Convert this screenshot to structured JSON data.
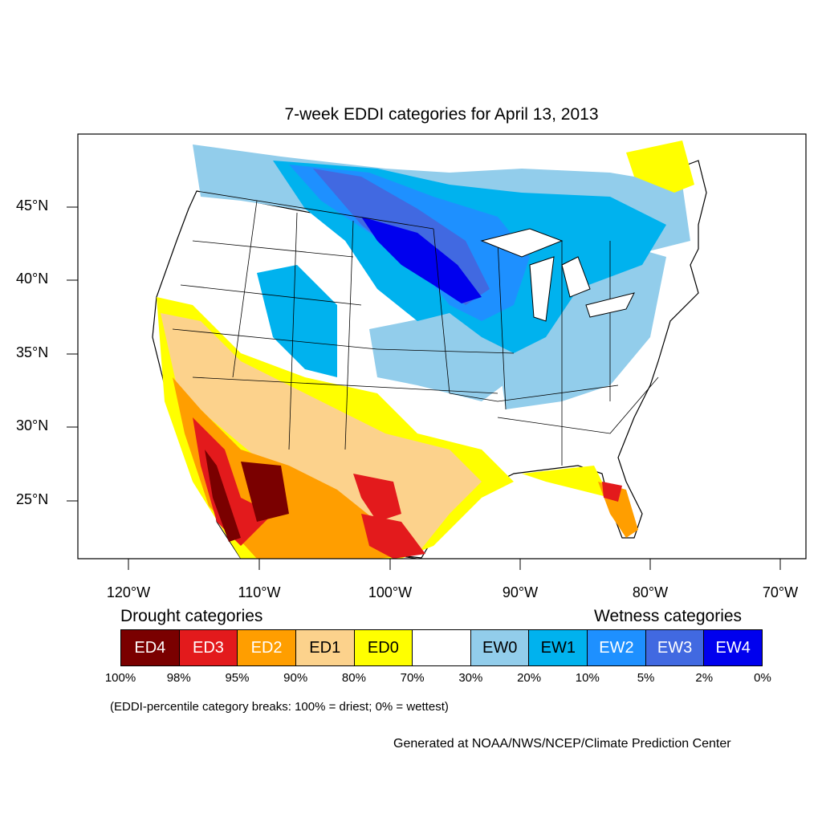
{
  "title": "7-week EDDI categories for April 13, 2013",
  "lat_labels": [
    "45°N",
    "40°N",
    "35°N",
    "30°N",
    "25°N"
  ],
  "lon_labels": [
    "120°W",
    "110°W",
    "100°W",
    "90°W",
    "80°W",
    "70°W"
  ],
  "legend": {
    "drought_heading": "Drought categories",
    "wetness_heading": "Wetness categories",
    "categories": [
      {
        "label": "ED4",
        "color": "#7a0000",
        "text_color": "#ffffff"
      },
      {
        "label": "ED3",
        "color": "#e31a1c",
        "text_color": "#ffffff"
      },
      {
        "label": "ED2",
        "color": "#ff9e00",
        "text_color": "#ffffff"
      },
      {
        "label": "ED1",
        "color": "#fcd28c",
        "text_color": "#000000"
      },
      {
        "label": "ED0",
        "color": "#ffff00",
        "text_color": "#000000"
      },
      {
        "label": "",
        "color": "#ffffff",
        "text_color": "#000000"
      },
      {
        "label": "EW0",
        "color": "#92cdeb",
        "text_color": "#000000"
      },
      {
        "label": "EW1",
        "color": "#00b2ee",
        "text_color": "#000000"
      },
      {
        "label": "EW2",
        "color": "#1e90ff",
        "text_color": "#ffffff"
      },
      {
        "label": "EW3",
        "color": "#4169e1",
        "text_color": "#ffffff"
      },
      {
        "label": "EW4",
        "color": "#0000ee",
        "text_color": "#ffffff"
      }
    ],
    "breaks": [
      "100%",
      "98%",
      "95%",
      "90%",
      "80%",
      "70%",
      "30%",
      "20%",
      "10%",
      "5%",
      "2%",
      "0%"
    ]
  },
  "note": "(EDDI-percentile category breaks: 100% = driest; 0% = wettest)",
  "credit": "Generated at NOAA/NWS/NCEP/Climate Prediction Center"
}
